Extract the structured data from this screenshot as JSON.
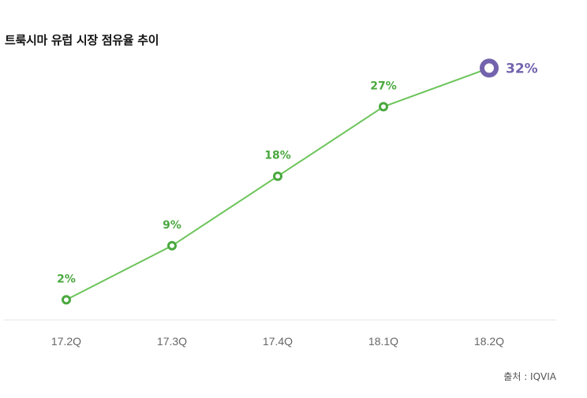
{
  "title": "트룩시마 유럽 시장 점유율 추이",
  "source": "출처 : IQVIA",
  "colors": {
    "line": "#6cc45a",
    "label": "#4aa83f",
    "highlight": "#7363ad",
    "axis": "#e6e6e6",
    "tick": "#666666"
  },
  "chart_data": {
    "type": "line",
    "title": "트룩시마 유럽 시장 점유율 추이",
    "xlabel": "",
    "ylabel": "",
    "categories": [
      "17.2Q",
      "17.3Q",
      "17.4Q",
      "18.1Q",
      "18.2Q"
    ],
    "values": [
      2,
      9,
      18,
      27,
      32
    ],
    "data_labels": [
      "2%",
      "9%",
      "18%",
      "27%",
      "32%"
    ],
    "unit": "%",
    "grid": false,
    "legend": "none"
  }
}
